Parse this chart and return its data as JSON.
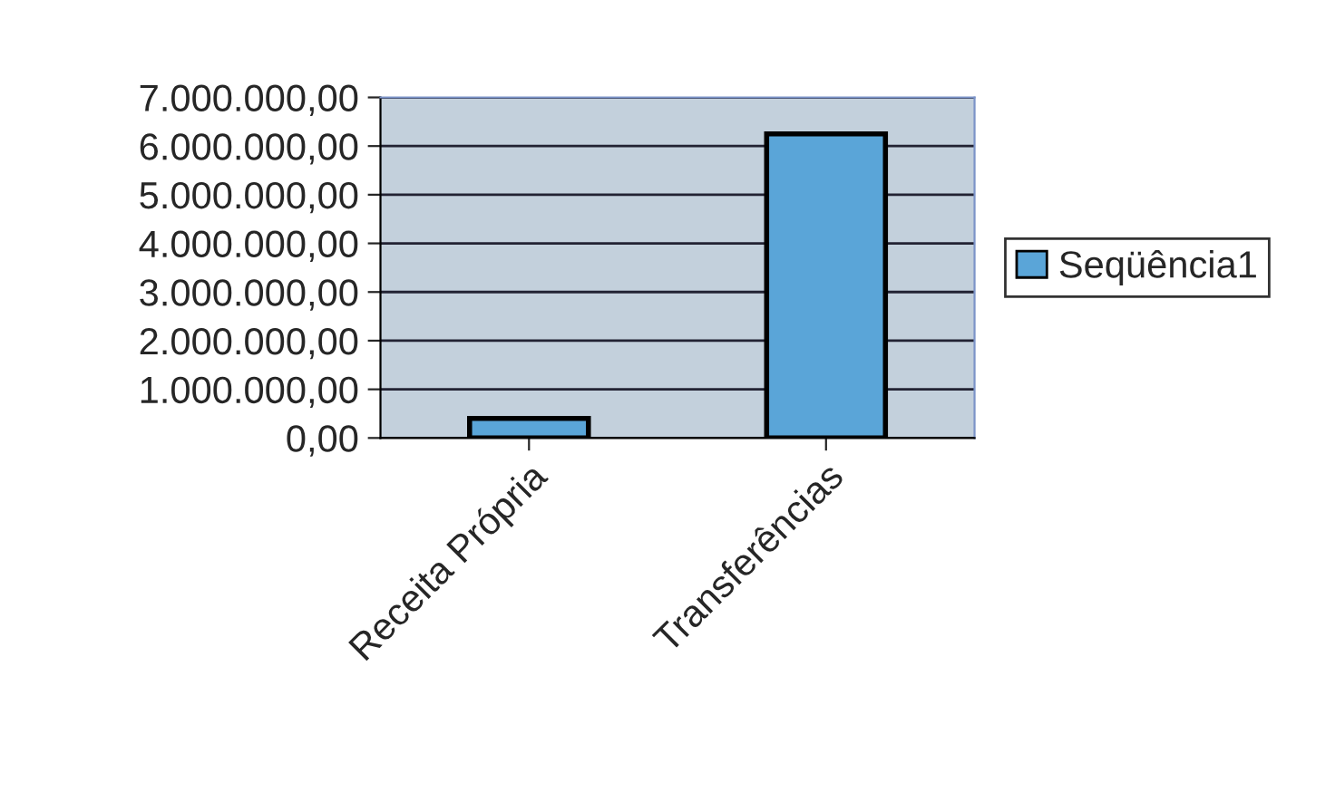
{
  "chart_data": {
    "type": "bar",
    "categories": [
      "Receita Própria",
      "Transferências"
    ],
    "series": [
      {
        "name": "Seqüência1",
        "color": "#5aa5d8",
        "values": [
          400000,
          6250000
        ]
      }
    ],
    "ylim": [
      0,
      7000000
    ],
    "yticks": [
      {
        "value": 0,
        "label": "0,00"
      },
      {
        "value": 1000000,
        "label": "1.000.000,00"
      },
      {
        "value": 2000000,
        "label": "2.000.000,00"
      },
      {
        "value": 3000000,
        "label": "3.000.000,00"
      },
      {
        "value": 4000000,
        "label": "4.000.000,00"
      },
      {
        "value": 5000000,
        "label": "5.000.000,00"
      },
      {
        "value": 6000000,
        "label": "6.000.000,00"
      },
      {
        "value": 7000000,
        "label": "7.000.000,00"
      }
    ],
    "grid": "y",
    "legend": "right"
  }
}
